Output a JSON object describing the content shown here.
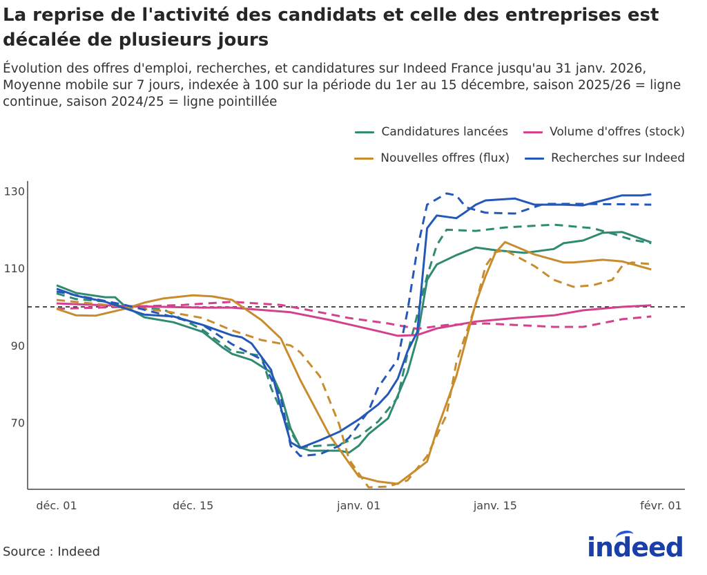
{
  "title": "La reprise de l'activité des candidats et celle des entreprises est décalée de plusieurs jours",
  "subtitle": "Évolution des offres d'emploi, recherches, et candidatures sur Indeed France jusqu'au 31 janv. 2026, Moyenne mobile sur 7 jours, indexée à 100 sur la période du 1er au 15 décembre, saison 2025/26 = ligne continue, saison 2024/25 = ligne pointillée",
  "source": "Source : Indeed",
  "logo_text": "indeed",
  "chart_data": {
    "type": "line",
    "title": "La reprise de l'activité des candidats et celle des entreprises est décalée de plusieurs jours",
    "xlabel": "",
    "ylabel": "",
    "ylim": [
      52.5,
      133
    ],
    "reference_line": 100,
    "grid": false,
    "legend_position": "top-right",
    "x_ticks": [
      {
        "date": "12-01",
        "label": "déc. 01"
      },
      {
        "date": "12-15",
        "label": "déc. 15"
      },
      {
        "date": "01-01",
        "label": "janv. 01"
      },
      {
        "date": "01-15",
        "label": "janv. 15"
      },
      {
        "date": "02-01",
        "label": "févr. 01"
      }
    ],
    "y_ticks": [
      70,
      90,
      110,
      130
    ],
    "legend": [
      {
        "name": "Candidatures lancées",
        "color": "#2f8a72"
      },
      {
        "name": "Volume d'offres (stock)",
        "color": "#d3408c"
      },
      {
        "name": "Nouvelles offres (flux)",
        "color": "#c88c2e"
      },
      {
        "name": "Recherches sur Indeed",
        "color": "#2458b8"
      }
    ],
    "series": [
      {
        "name": "Candidatures lancées",
        "season": "2025/26",
        "style": "solid",
        "color": "#2f8a72",
        "points": [
          [
            "2025-12-01",
            105.6
          ],
          [
            "2025-12-03",
            103.6
          ],
          [
            "2025-12-06",
            102.5
          ],
          [
            "2025-12-07",
            102.5
          ],
          [
            "2025-12-08",
            100.2
          ],
          [
            "2025-12-10",
            97.3
          ],
          [
            "2025-12-13",
            96.0
          ],
          [
            "2025-12-16",
            93.5
          ],
          [
            "2025-12-18",
            89.5
          ],
          [
            "2025-12-19",
            87.8
          ],
          [
            "2025-12-21",
            86.2
          ],
          [
            "2025-12-23",
            83.0
          ],
          [
            "2025-12-24",
            77.4
          ],
          [
            "2025-12-25",
            68.5
          ],
          [
            "2025-12-26",
            63.5
          ],
          [
            "2025-12-27",
            62.7
          ],
          [
            "2025-12-30",
            62.7
          ],
          [
            "2025-12-31",
            62.2
          ],
          [
            "2026-01-01",
            64.0
          ],
          [
            "2026-01-02",
            67.0
          ],
          [
            "2026-01-04",
            71.1
          ],
          [
            "2026-01-06",
            83.0
          ],
          [
            "2026-01-07",
            92.0
          ],
          [
            "2026-01-08",
            107.0
          ],
          [
            "2026-01-09",
            111.0
          ],
          [
            "2026-01-11",
            113.4
          ],
          [
            "2026-01-13",
            115.4
          ],
          [
            "2026-01-15",
            114.7
          ],
          [
            "2026-01-18",
            114.0
          ],
          [
            "2026-01-21",
            115.0
          ],
          [
            "2026-01-22",
            116.5
          ],
          [
            "2026-01-24",
            117.2
          ],
          [
            "2026-01-26",
            119.2
          ],
          [
            "2026-01-28",
            119.4
          ],
          [
            "2026-01-31",
            116.7
          ]
        ]
      },
      {
        "name": "Candidatures lancées",
        "season": "2024/25",
        "style": "dashed",
        "color": "#2f8a72",
        "points": [
          [
            "2024-12-01",
            103.5
          ],
          [
            "2024-12-03",
            102.0
          ],
          [
            "2024-12-06",
            101.4
          ],
          [
            "2024-12-08",
            100.0
          ],
          [
            "2024-12-12",
            99.3
          ],
          [
            "2024-12-16",
            94.0
          ],
          [
            "2024-12-19",
            88.5
          ],
          [
            "2024-12-22",
            87.3
          ],
          [
            "2024-12-23",
            79.0
          ],
          [
            "2024-12-25",
            67.6
          ],
          [
            "2024-12-26",
            63.6
          ],
          [
            "2024-12-28",
            64.0
          ],
          [
            "2024-12-30",
            64.3
          ],
          [
            "2025-01-01",
            66.3
          ],
          [
            "2025-01-03",
            70.3
          ],
          [
            "2025-01-05",
            76.5
          ],
          [
            "2025-01-06",
            88.0
          ],
          [
            "2025-01-07",
            98.0
          ],
          [
            "2025-01-08",
            108.0
          ],
          [
            "2025-01-09",
            116.0
          ],
          [
            "2025-01-10",
            120.0
          ],
          [
            "2025-01-13",
            119.7
          ],
          [
            "2025-01-16",
            120.6
          ],
          [
            "2025-01-21",
            121.3
          ],
          [
            "2025-01-25",
            120.4
          ],
          [
            "2025-01-27",
            119.0
          ],
          [
            "2025-01-29",
            117.4
          ],
          [
            "2025-01-31",
            116.5
          ]
        ]
      },
      {
        "name": "Volume d'offres (stock)",
        "season": "2025/26",
        "style": "solid",
        "color": "#d3408c",
        "points": [
          [
            "2025-12-01",
            100.9
          ],
          [
            "2025-12-08",
            100.2
          ],
          [
            "2025-12-16",
            99.8
          ],
          [
            "2025-12-19",
            99.8
          ],
          [
            "2025-12-25",
            98.6
          ],
          [
            "2025-12-29",
            96.6
          ],
          [
            "2026-01-03",
            93.7
          ],
          [
            "2026-01-05",
            92.5
          ],
          [
            "2026-01-07",
            92.7
          ],
          [
            "2026-01-09",
            94.4
          ],
          [
            "2026-01-13",
            96.2
          ],
          [
            "2026-01-17",
            97.1
          ],
          [
            "2026-01-21",
            97.8
          ],
          [
            "2026-01-24",
            99.1
          ],
          [
            "2026-01-28",
            100.0
          ],
          [
            "2026-01-31",
            100.4
          ]
        ]
      },
      {
        "name": "Volume d'offres (stock)",
        "season": "2024/25",
        "style": "dashed",
        "color": "#d3408c",
        "points": [
          [
            "2024-12-01",
            99.5
          ],
          [
            "2024-12-08",
            100.0
          ],
          [
            "2024-12-14",
            100.5
          ],
          [
            "2024-12-19",
            101.3
          ],
          [
            "2024-12-24",
            100.5
          ],
          [
            "2024-12-27",
            99.1
          ],
          [
            "2024-12-31",
            97.1
          ],
          [
            "2025-01-04",
            95.7
          ],
          [
            "2025-01-07",
            94.3
          ],
          [
            "2025-01-10",
            95.3
          ],
          [
            "2025-01-14",
            95.7
          ],
          [
            "2025-01-17",
            95.3
          ],
          [
            "2025-01-21",
            94.8
          ],
          [
            "2025-01-24",
            94.8
          ],
          [
            "2025-01-28",
            96.8
          ],
          [
            "2025-01-31",
            97.5
          ]
        ]
      },
      {
        "name": "Nouvelles offres (flux)",
        "season": "2025/26",
        "style": "solid",
        "color": "#c88c2e",
        "points": [
          [
            "2025-12-01",
            99.5
          ],
          [
            "2025-12-03",
            97.8
          ],
          [
            "2025-12-05",
            97.7
          ],
          [
            "2025-12-08",
            99.5
          ],
          [
            "2025-12-10",
            101.1
          ],
          [
            "2025-12-12",
            102.2
          ],
          [
            "2025-12-15",
            103.0
          ],
          [
            "2025-12-17",
            102.7
          ],
          [
            "2025-12-19",
            101.8
          ],
          [
            "2025-12-22",
            96.6
          ],
          [
            "2025-12-24",
            91.8
          ],
          [
            "2025-12-26",
            81.0
          ],
          [
            "2025-12-29",
            66.7
          ],
          [
            "2025-12-31",
            59.5
          ],
          [
            "2026-01-01",
            56.0
          ],
          [
            "2026-01-03",
            54.7
          ],
          [
            "2026-01-05",
            54.1
          ],
          [
            "2026-01-06",
            56.0
          ],
          [
            "2026-01-08",
            59.9
          ],
          [
            "2026-01-09",
            68.0
          ],
          [
            "2026-01-11",
            82.0
          ],
          [
            "2026-01-13",
            101.0
          ],
          [
            "2026-01-14",
            108.0
          ],
          [
            "2026-01-15",
            114.0
          ],
          [
            "2026-01-16",
            116.8
          ],
          [
            "2026-01-19",
            113.6
          ],
          [
            "2026-01-22",
            111.5
          ],
          [
            "2026-01-23",
            111.5
          ],
          [
            "2026-01-26",
            112.2
          ],
          [
            "2026-01-28",
            111.8
          ],
          [
            "2026-01-31",
            109.7
          ]
        ]
      },
      {
        "name": "Nouvelles offres (flux)",
        "season": "2024/25",
        "style": "dashed",
        "color": "#c88c2e",
        "points": [
          [
            "2024-12-01",
            101.8
          ],
          [
            "2024-12-08",
            100.0
          ],
          [
            "2024-12-12",
            98.9
          ],
          [
            "2024-12-16",
            97.1
          ],
          [
            "2024-12-19",
            93.9
          ],
          [
            "2024-12-22",
            91.4
          ],
          [
            "2024-12-25",
            90.0
          ],
          [
            "2024-12-26",
            88.2
          ],
          [
            "2024-12-28",
            82.0
          ],
          [
            "2024-12-30",
            69.4
          ],
          [
            "2024-12-31",
            60.4
          ],
          [
            "2025-01-02",
            53.2
          ],
          [
            "2025-01-04",
            53.4
          ],
          [
            "2025-01-06",
            55.0
          ],
          [
            "2025-01-08",
            61.3
          ],
          [
            "2025-01-10",
            72.0
          ],
          [
            "2025-01-11",
            85.5
          ],
          [
            "2025-01-13",
            100.7
          ],
          [
            "2025-01-14",
            110.6
          ],
          [
            "2025-01-15",
            114.2
          ],
          [
            "2025-01-16",
            114.7
          ],
          [
            "2025-01-19",
            110.6
          ],
          [
            "2025-01-21",
            107.0
          ],
          [
            "2025-01-23",
            105.2
          ],
          [
            "2025-01-25",
            105.6
          ],
          [
            "2025-01-27",
            107.0
          ],
          [
            "2025-01-28",
            110.6
          ],
          [
            "2025-01-29",
            111.5
          ],
          [
            "2025-01-31",
            111.1
          ]
        ]
      },
      {
        "name": "Recherches sur Indeed",
        "season": "2025/26",
        "style": "solid",
        "color": "#2458b8",
        "points": [
          [
            "2025-12-01",
            104.7
          ],
          [
            "2025-12-03",
            102.9
          ],
          [
            "2025-12-06",
            101.3
          ],
          [
            "2025-12-08",
            99.6
          ],
          [
            "2025-12-10",
            98.0
          ],
          [
            "2025-12-13",
            97.5
          ],
          [
            "2025-12-16",
            95.3
          ],
          [
            "2025-12-19",
            92.6
          ],
          [
            "2025-12-20",
            92.1
          ],
          [
            "2025-12-21",
            90.5
          ],
          [
            "2025-12-23",
            83.7
          ],
          [
            "2025-12-24",
            73.8
          ],
          [
            "2025-12-25",
            64.9
          ],
          [
            "2025-12-26",
            63.4
          ],
          [
            "2025-12-28",
            65.4
          ],
          [
            "2025-12-30",
            67.6
          ],
          [
            "2026-01-01",
            70.8
          ],
          [
            "2026-01-03",
            74.7
          ],
          [
            "2026-01-04",
            77.4
          ],
          [
            "2026-01-05",
            81.4
          ],
          [
            "2026-01-06",
            88.5
          ],
          [
            "2026-01-07",
            93.5
          ],
          [
            "2026-01-08",
            120.4
          ],
          [
            "2026-01-09",
            123.7
          ],
          [
            "2026-01-11",
            123.0
          ],
          [
            "2026-01-12",
            124.7
          ],
          [
            "2026-01-13",
            126.5
          ],
          [
            "2026-01-14",
            127.6
          ],
          [
            "2026-01-17",
            128.1
          ],
          [
            "2026-01-19",
            126.5
          ],
          [
            "2026-01-22",
            126.5
          ],
          [
            "2026-01-24",
            126.3
          ],
          [
            "2026-01-26",
            127.6
          ],
          [
            "2026-01-28",
            128.9
          ],
          [
            "2026-01-30",
            128.9
          ],
          [
            "2026-01-31",
            129.2
          ]
        ]
      },
      {
        "name": "Recherches sur Indeed",
        "season": "2024/25",
        "style": "dashed",
        "color": "#2458b8",
        "points": [
          [
            "2024-12-01",
            104.0
          ],
          [
            "2024-12-08",
            100.5
          ],
          [
            "2024-12-12",
            98.0
          ],
          [
            "2024-12-16",
            95.3
          ],
          [
            "2024-12-19",
            90.3
          ],
          [
            "2024-12-22",
            86.4
          ],
          [
            "2024-12-24",
            76.5
          ],
          [
            "2024-12-25",
            64.0
          ],
          [
            "2024-12-26",
            61.3
          ],
          [
            "2024-12-28",
            61.8
          ],
          [
            "2024-12-30",
            64.0
          ],
          [
            "2024-12-31",
            66.1
          ],
          [
            "2025-01-02",
            73.0
          ],
          [
            "2025-01-03",
            79.2
          ],
          [
            "2025-01-05",
            86.4
          ],
          [
            "2025-01-06",
            99.0
          ],
          [
            "2025-01-07",
            115.0
          ],
          [
            "2025-01-08",
            126.5
          ],
          [
            "2025-01-10",
            129.4
          ],
          [
            "2025-01-11",
            128.9
          ],
          [
            "2025-01-12",
            125.8
          ],
          [
            "2025-01-14",
            124.4
          ],
          [
            "2025-01-17",
            124.2
          ],
          [
            "2025-01-20",
            126.7
          ],
          [
            "2025-01-24",
            126.7
          ],
          [
            "2025-01-31",
            126.5
          ]
        ]
      }
    ]
  }
}
